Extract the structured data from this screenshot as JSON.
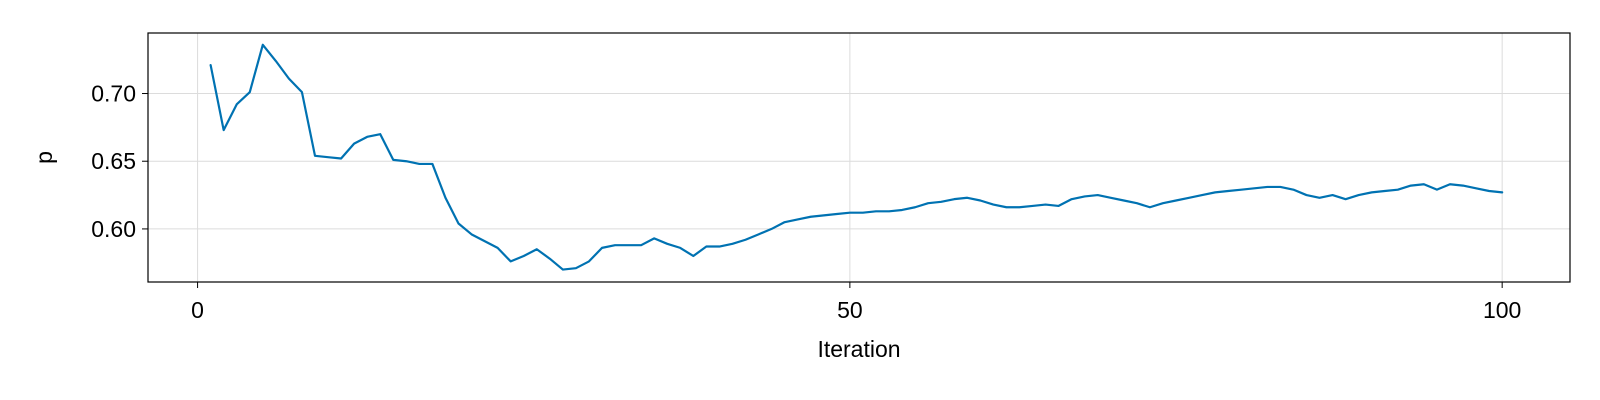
{
  "chart_data": {
    "type": "line",
    "title": "",
    "xlabel": "Iteration",
    "ylabel": "p",
    "xlim": [
      -3.8,
      105.2
    ],
    "ylim": [
      0.5608,
      0.7447
    ],
    "grid": true,
    "x_ticks": [
      0,
      50,
      100
    ],
    "x_tick_labels": [
      "0",
      "50",
      "100"
    ],
    "y_ticks": [
      0.6,
      0.65,
      0.7
    ],
    "y_tick_labels": [
      "0.60",
      "0.65",
      "0.70"
    ],
    "series": [
      {
        "color": "#0072b2",
        "x": [
          1,
          2,
          3,
          4,
          5,
          6,
          7,
          8,
          9,
          10,
          11,
          12,
          13,
          14,
          15,
          16,
          17,
          18,
          19,
          20,
          21,
          22,
          23,
          24,
          25,
          26,
          27,
          28,
          29,
          30,
          31,
          32,
          33,
          34,
          35,
          36,
          37,
          38,
          39,
          40,
          41,
          42,
          43,
          44,
          45,
          46,
          47,
          48,
          49,
          50,
          51,
          52,
          53,
          54,
          55,
          56,
          57,
          58,
          59,
          60,
          61,
          62,
          63,
          64,
          65,
          66,
          67,
          68,
          69,
          70,
          71,
          72,
          73,
          74,
          75,
          76,
          77,
          78,
          79,
          80,
          81,
          82,
          83,
          84,
          85,
          86,
          87,
          88,
          89,
          90,
          91,
          92,
          93,
          94,
          95,
          96,
          97,
          98,
          99,
          100
        ],
        "y": [
          0.721,
          0.673,
          0.692,
          0.701,
          0.736,
          0.724,
          0.711,
          0.701,
          0.654,
          0.653,
          0.652,
          0.663,
          0.668,
          0.67,
          0.651,
          0.65,
          0.648,
          0.648,
          0.623,
          0.604,
          0.596,
          0.591,
          0.586,
          0.576,
          0.58,
          0.585,
          0.578,
          0.57,
          0.571,
          0.576,
          0.586,
          0.588,
          0.588,
          0.588,
          0.593,
          0.589,
          0.586,
          0.58,
          0.587,
          0.587,
          0.589,
          0.592,
          0.596,
          0.6,
          0.605,
          0.607,
          0.609,
          0.61,
          0.611,
          0.612,
          0.612,
          0.613,
          0.613,
          0.614,
          0.616,
          0.619,
          0.62,
          0.622,
          0.623,
          0.621,
          0.618,
          0.616,
          0.616,
          0.617,
          0.618,
          0.617,
          0.622,
          0.624,
          0.625,
          0.623,
          0.621,
          0.619,
          0.616,
          0.619,
          0.621,
          0.623,
          0.625,
          0.627,
          0.628,
          0.629,
          0.63,
          0.631,
          0.631,
          0.629,
          0.625,
          0.623,
          0.625,
          0.622,
          0.625,
          0.627,
          0.628,
          0.629,
          0.632,
          0.633,
          0.629,
          0.633,
          0.632,
          0.63,
          0.628,
          0.627
        ]
      }
    ]
  }
}
